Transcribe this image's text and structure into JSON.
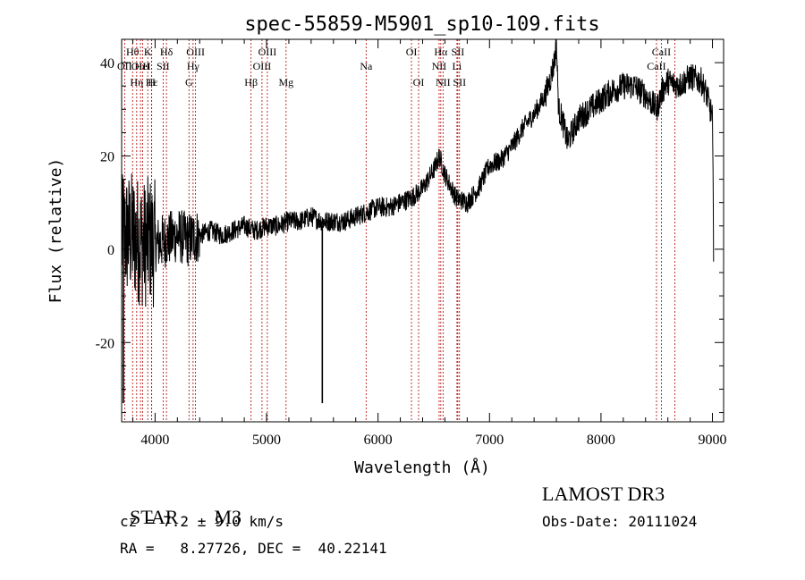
{
  "chart_data": {
    "type": "line",
    "title": "spec-55859-M5901_sp10-109.fits",
    "xlabel": "Wavelength (Å)",
    "ylabel": "Flux (relative)",
    "xlim": [
      3700,
      9100
    ],
    "ylim": [
      -37,
      45
    ],
    "x_ticks": [
      4000,
      5000,
      6000,
      7000,
      8000,
      9000
    ],
    "x_tick_labels": [
      "4000",
      "5000",
      "6000",
      "7000",
      "8000",
      "9000"
    ],
    "y_ticks": [
      -20,
      0,
      20,
      40
    ],
    "y_tick_labels": [
      "-20",
      "0",
      "20",
      "40"
    ],
    "series": [
      {
        "name": "spectrum",
        "x": [
          3700,
          3750,
          3800,
          3850,
          3900,
          3950,
          4000,
          4100,
          4200,
          4300,
          4400,
          4500,
          4600,
          4700,
          4800,
          4900,
          5000,
          5100,
          5200,
          5300,
          5400,
          5500,
          5600,
          5700,
          5800,
          5900,
          6000,
          6100,
          6200,
          6300,
          6400,
          6500,
          6550,
          6600,
          6700,
          6800,
          6900,
          7000,
          7100,
          7200,
          7300,
          7400,
          7500,
          7550,
          7580,
          7600,
          7620,
          7650,
          7700,
          7800,
          7900,
          8000,
          8100,
          8200,
          8300,
          8400,
          8500,
          8550,
          8600,
          8700,
          8800,
          8900,
          8950,
          9000,
          9010
        ],
        "values": [
          2,
          3,
          3,
          2,
          1,
          2,
          1,
          2,
          3,
          2,
          3,
          4,
          3,
          4,
          5,
          4,
          5,
          5,
          6,
          6,
          7,
          6,
          6,
          6,
          7,
          8,
          9,
          9,
          10,
          11,
          13,
          17,
          20,
          16,
          11,
          10,
          13,
          18,
          19,
          22,
          26,
          29,
          33,
          37,
          40,
          44,
          30,
          28,
          23,
          28,
          30,
          32,
          34,
          35,
          35,
          33,
          30,
          34,
          36,
          35,
          37,
          36,
          33,
          28,
          0
        ]
      }
    ],
    "spikes": [
      {
        "x": 5500,
        "from": 5,
        "to": -33
      },
      {
        "x": 3715,
        "from": 15,
        "to": -33
      }
    ],
    "line_markers": [
      {
        "name": "OII",
        "x": 3727,
        "row": 2
      },
      {
        "name": "Hθ",
        "x": 3798,
        "row": 1
      },
      {
        "name": "OIII",
        "x": 3869,
        "row": 2
      },
      {
        "name": "K",
        "x": 3934,
        "row": 1
      },
      {
        "name": "HeI",
        "x": 3889,
        "row": 2
      },
      {
        "name": "Hε",
        "x": 3970,
        "row": 3
      },
      {
        "name": "Hη",
        "x": 3835,
        "row": 3
      },
      {
        "name": "H",
        "x": 3969,
        "row": 3
      },
      {
        "name": "SII",
        "x": 4072,
        "row": 2
      },
      {
        "name": "Hδ",
        "x": 4102,
        "row": 1
      },
      {
        "name": "OIII",
        "x": 4363,
        "row": 1
      },
      {
        "name": "Hγ",
        "x": 4341,
        "row": 2
      },
      {
        "name": "G",
        "x": 4304,
        "row": 3
      },
      {
        "name": "Hβ",
        "x": 4861,
        "row": 3
      },
      {
        "name": "OIII",
        "x": 5007,
        "row": 1
      },
      {
        "name": "OIII",
        "x": 4959,
        "row": 2
      },
      {
        "name": "Mg",
        "x": 5175,
        "row": 3
      },
      {
        "name": "Na",
        "x": 5893,
        "row": 2
      },
      {
        "name": "OI",
        "x": 6300,
        "row": 1
      },
      {
        "name": "OI",
        "x": 6364,
        "row": 3
      },
      {
        "name": "Hα",
        "x": 6563,
        "row": 1
      },
      {
        "name": "NII",
        "x": 6548,
        "row": 2
      },
      {
        "name": "NII",
        "x": 6583,
        "row": 3
      },
      {
        "name": "SII",
        "x": 6716,
        "row": 1
      },
      {
        "name": "Li",
        "x": 6708,
        "row": 2
      },
      {
        "name": "SII",
        "x": 6731,
        "row": 3
      },
      {
        "name": "CaII",
        "x": 8542,
        "row": 1
      },
      {
        "name": "CaII",
        "x": 8498,
        "row": 2
      },
      {
        "name": "CaII",
        "x": 8662,
        "row": 3
      }
    ]
  },
  "info": {
    "class_label": "STAR",
    "subclass_label": "M3",
    "survey": "LAMOST DR3",
    "cz": "cz = 7.2 ± 9.0 km/s",
    "obs_date": "Obs-Date: 20111024",
    "coords": "RA =   8.27726, DEC =  40.22141"
  }
}
